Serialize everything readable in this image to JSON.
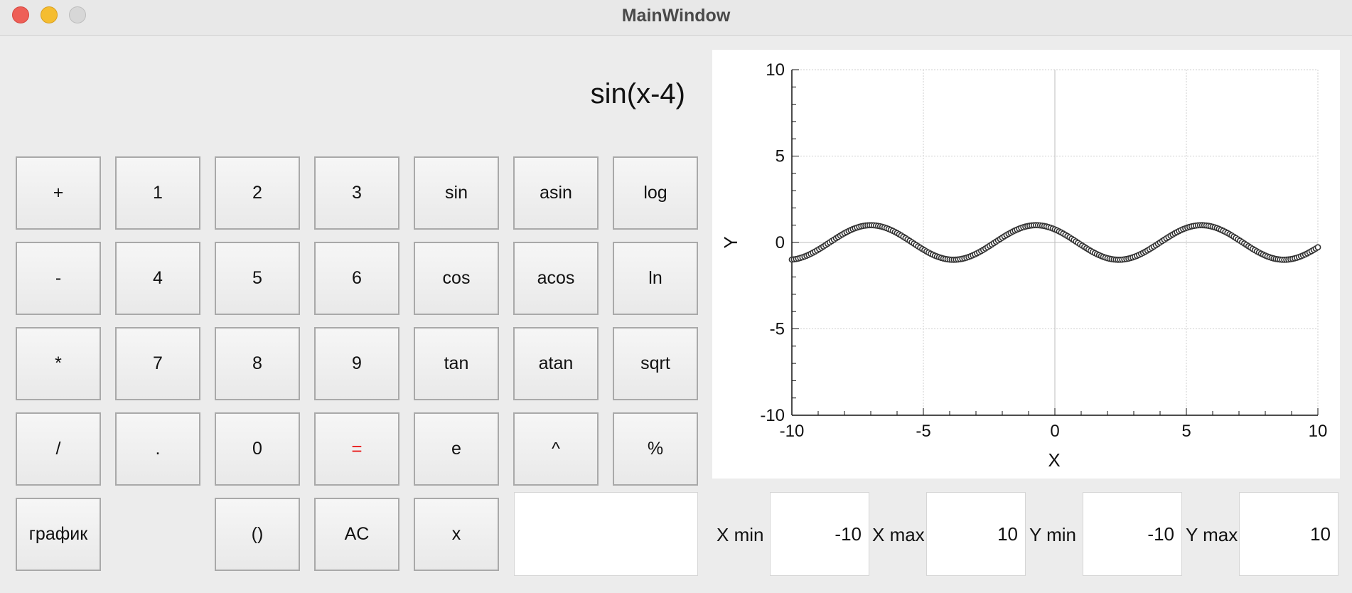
{
  "window": {
    "title": "MainWindow"
  },
  "display": {
    "expression": "sin(x-4)"
  },
  "buttons": [
    {
      "label": "+",
      "name": "plus-button"
    },
    {
      "label": "1",
      "name": "digit-1-button"
    },
    {
      "label": "2",
      "name": "digit-2-button"
    },
    {
      "label": "3",
      "name": "digit-3-button"
    },
    {
      "label": "sin",
      "name": "sin-button"
    },
    {
      "label": "asin",
      "name": "asin-button"
    },
    {
      "label": "log",
      "name": "log-button"
    },
    {
      "label": "-",
      "name": "minus-button"
    },
    {
      "label": "4",
      "name": "digit-4-button"
    },
    {
      "label": "5",
      "name": "digit-5-button"
    },
    {
      "label": "6",
      "name": "digit-6-button"
    },
    {
      "label": "cos",
      "name": "cos-button"
    },
    {
      "label": "acos",
      "name": "acos-button"
    },
    {
      "label": "ln",
      "name": "ln-button"
    },
    {
      "label": "*",
      "name": "multiply-button"
    },
    {
      "label": "7",
      "name": "digit-7-button"
    },
    {
      "label": "8",
      "name": "digit-8-button"
    },
    {
      "label": "9",
      "name": "digit-9-button"
    },
    {
      "label": "tan",
      "name": "tan-button"
    },
    {
      "label": "atan",
      "name": "atan-button"
    },
    {
      "label": "sqrt",
      "name": "sqrt-button"
    },
    {
      "label": "/",
      "name": "divide-button"
    },
    {
      "label": ".",
      "name": "decimal-point-button"
    },
    {
      "label": "0",
      "name": "digit-0-button"
    },
    {
      "label": "=",
      "name": "equals-button",
      "accent": "#e81b1b"
    },
    {
      "label": "e",
      "name": "e-constant-button"
    },
    {
      "label": "^",
      "name": "power-button"
    },
    {
      "label": "%",
      "name": "percent-button"
    },
    {
      "label": "график",
      "name": "plot-button"
    },
    {
      "label": "()",
      "name": "parentheses-button"
    },
    {
      "label": "AC",
      "name": "clear-all-button"
    },
    {
      "label": "x",
      "name": "variable-x-button"
    }
  ],
  "x_value_input": {
    "value": ""
  },
  "range_inputs": {
    "x_min": {
      "label": "X min",
      "value": "-10"
    },
    "x_max": {
      "label": "X max",
      "value": "10"
    },
    "y_min": {
      "label": "Y min",
      "value": "-10"
    },
    "y_max": {
      "label": "Y max",
      "value": "10"
    }
  },
  "chart_data": {
    "type": "scatter",
    "function": "sin(x-4)",
    "xlabel": "X",
    "ylabel": "Y",
    "xlim": [
      -10,
      10
    ],
    "ylim": [
      -10,
      10
    ],
    "x_ticks": [
      "-10",
      "-5",
      "0",
      "5",
      "10"
    ],
    "y_ticks": [
      "10",
      "5",
      "0",
      "-5",
      "-10"
    ],
    "grid": true,
    "marker": "open-circle",
    "series_color": "#333333"
  }
}
